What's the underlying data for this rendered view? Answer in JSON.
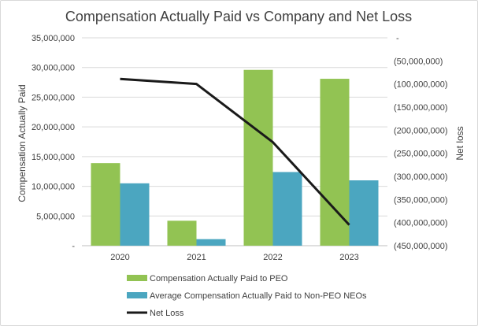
{
  "chart_data": {
    "type": "bar+line",
    "title": "Compensation Actually Paid vs Company and Net Loss",
    "categories": [
      "2020",
      "2021",
      "2022",
      "2023"
    ],
    "series": [
      {
        "name": "Compensation Actually Paid to PEO",
        "kind": "bar",
        "axis": "left",
        "color": "#92c353",
        "values": [
          13900000,
          4200000,
          29600000,
          28100000
        ]
      },
      {
        "name": "Average Compensation Actually Paid to Non-PEO NEOs",
        "kind": "bar",
        "axis": "left",
        "color": "#4ba6c0",
        "values": [
          10500000,
          1100000,
          12400000,
          11000000
        ]
      },
      {
        "name": "Net Loss",
        "kind": "line",
        "axis": "right",
        "color": "#1a1a1a",
        "values": [
          -89000000,
          -100000000,
          -226000000,
          -405000000
        ]
      }
    ],
    "ylabel": "Compensation Actually Paid",
    "y2label": "Net loss",
    "ylim": [
      0,
      35000000
    ],
    "y2lim": [
      -450000000,
      0
    ],
    "yticks": [
      "-",
      "5,000,000",
      "10,000,000",
      "15,000,000",
      "20,000,000",
      "25,000,000",
      "30,000,000",
      "35,000,000"
    ],
    "y2ticks": [
      "-",
      "(50,000,000)",
      "(100,000,000)",
      "(150,000,000)",
      "(200,000,000)",
      "(250,000,000)",
      "(300,000,000)",
      "(350,000,000)",
      "(400,000,000)",
      "(450,000,000)"
    ],
    "grid": true,
    "legend_position": "bottom"
  }
}
